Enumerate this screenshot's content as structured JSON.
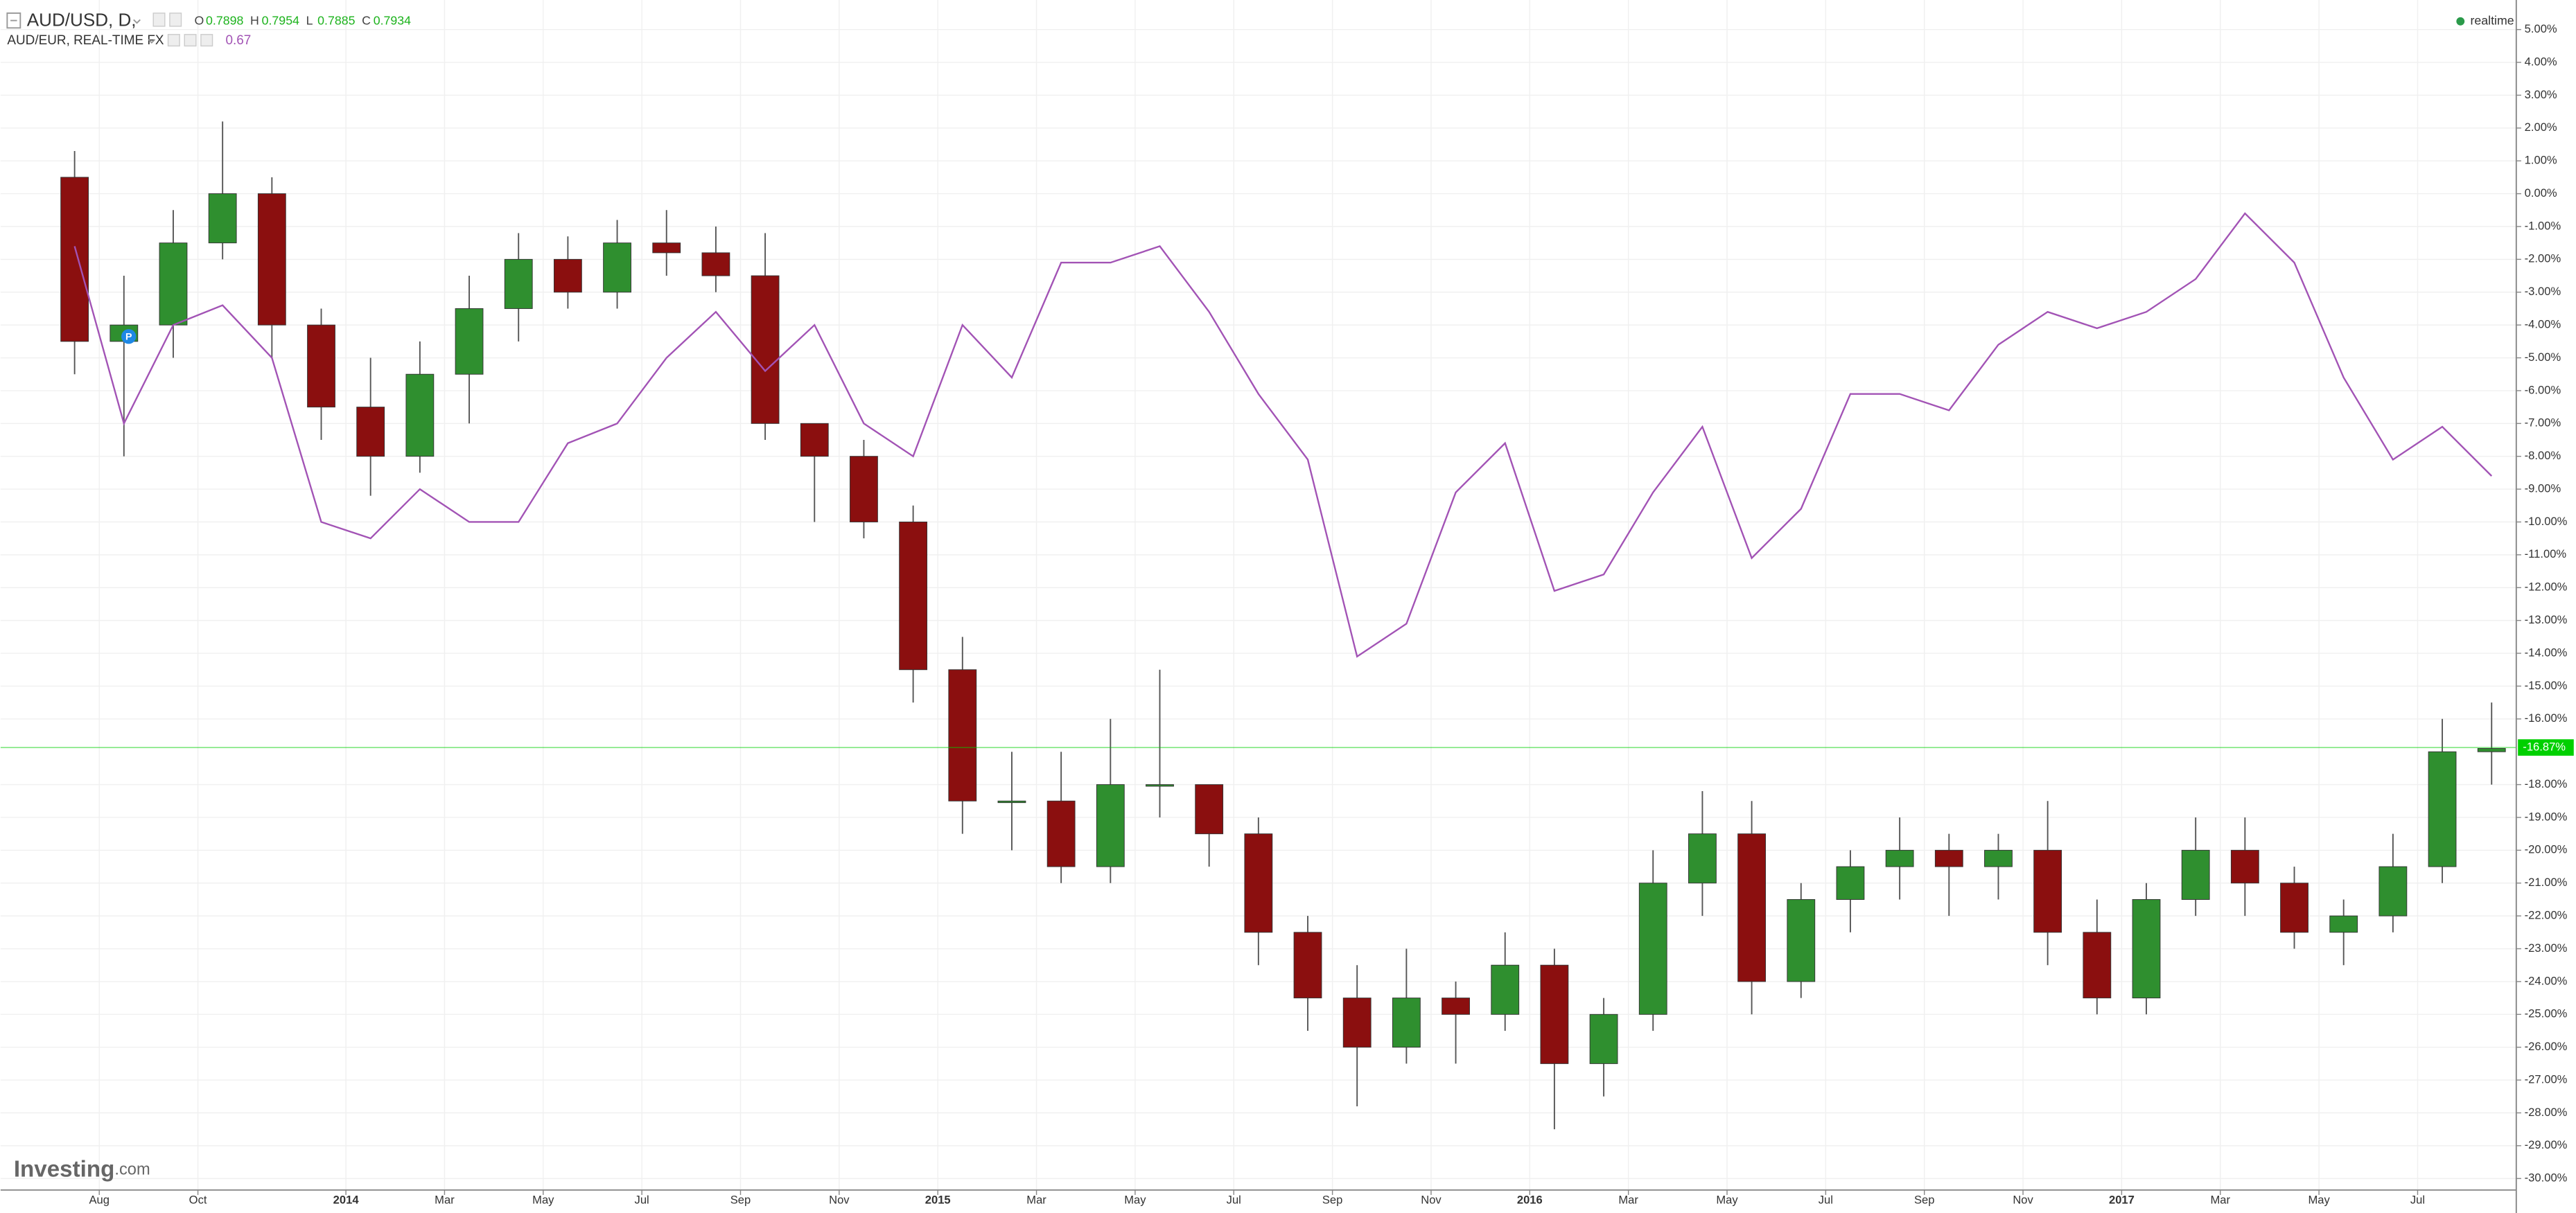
{
  "chart_data": {
    "type": "candlestick",
    "header": {
      "symbol": "AUD/USD, D,",
      "ohlc": [
        {
          "label": "O",
          "value": "0.7898"
        },
        {
          "label": "H",
          "value": "0.7954"
        },
        {
          "label": "L",
          "value": "0.7885"
        },
        {
          "label": "C",
          "value": "0.7934"
        }
      ],
      "compare": "AUD/EUR, REAL-TIME FX",
      "compare_value": "0.67",
      "status": "realtime",
      "watermark": "Investing",
      "watermark_suffix": ".com"
    },
    "x": [
      "2013-07",
      "2013-08",
      "2013-09",
      "2013-10",
      "2013-11",
      "2013-12",
      "2014-01",
      "2014-02",
      "2014-03",
      "2014-04",
      "2014-05",
      "2014-06",
      "2014-07",
      "2014-08",
      "2014-09",
      "2014-10",
      "2014-11",
      "2014-12",
      "2015-01",
      "2015-02",
      "2015-03",
      "2015-04",
      "2015-05",
      "2015-06",
      "2015-07",
      "2015-08",
      "2015-09",
      "2015-10",
      "2015-11",
      "2015-12",
      "2016-01",
      "2016-02",
      "2016-03",
      "2016-04",
      "2016-05",
      "2016-06",
      "2016-07",
      "2016-08",
      "2016-09",
      "2016-10",
      "2016-11",
      "2016-12",
      "2017-01",
      "2017-02",
      "2017-03",
      "2017-04",
      "2017-05",
      "2017-06",
      "2017-07",
      "2017-08"
    ],
    "series": [
      {
        "name": "AUD/USD",
        "color_up": "#2f8f2f",
        "color_down": "#8b0f0f",
        "open": [
          0.5,
          -4.5,
          -4,
          -1.5,
          0,
          -4,
          -6.5,
          -8,
          -5.5,
          -3.5,
          -2,
          -3,
          -1.5,
          -1.8,
          -2.5,
          -7,
          -8,
          -10,
          -14.5,
          -18.5,
          -18.5,
          -20.5,
          -18,
          -18,
          -19.5,
          -22.5,
          -24.5,
          -26,
          -24.5,
          -25,
          -23.5,
          -26.5,
          -25,
          -21,
          -19.5,
          -24,
          -21.5,
          -20.5,
          -20,
          -20.5,
          -20,
          -22.5,
          -24.5,
          -21.5,
          -20,
          -21,
          -22.5,
          -22,
          -20.5,
          -17
        ],
        "high": [
          1.3,
          -2.5,
          -0.5,
          2.2,
          0.5,
          -3.5,
          -5,
          -4.5,
          -2.5,
          -1.2,
          -1.3,
          -0.8,
          -0.5,
          -1,
          -1.2,
          -7,
          -7.5,
          -9.5,
          -13.5,
          -17,
          -17,
          -16,
          -14.5,
          -18,
          -19,
          -22,
          -23.5,
          -23,
          -24,
          -22.5,
          -23,
          -24.5,
          -20,
          -18.2,
          -18.5,
          -21,
          -20,
          -19,
          -19.5,
          -19.5,
          -18.5,
          -21.5,
          -21,
          -19,
          -19,
          -20.5,
          -21.5,
          -19.5,
          -16,
          -15.5
        ],
        "low": [
          -5.5,
          -8,
          -5,
          -2,
          -5,
          -7.5,
          -9.2,
          -8.5,
          -7,
          -4.5,
          -3.5,
          -3.5,
          -2.5,
          -3,
          -7.5,
          -10,
          -10.5,
          -15.5,
          -19.5,
          -20,
          -21,
          -21,
          -19,
          -20.5,
          -23.5,
          -25.5,
          -27.8,
          -26.5,
          -26.5,
          -25.5,
          -28.5,
          -27.5,
          -25.5,
          -22,
          -25,
          -24.5,
          -22.5,
          -21.5,
          -22,
          -21.5,
          -23.5,
          -25,
          -25,
          -22,
          -22,
          -23,
          -23.5,
          -22.5,
          -21,
          -18
        ],
        "close": [
          -4.5,
          -4,
          -1.5,
          0,
          -4,
          -6.5,
          -8,
          -5.5,
          -3.5,
          -2,
          -3,
          -1.5,
          -1.8,
          -2.5,
          -7,
          -8,
          -10,
          -14.5,
          -18.5,
          -18.5,
          -20.5,
          -18,
          -18,
          -19.5,
          -22.5,
          -24.5,
          -26,
          -24.5,
          -25,
          -23.5,
          -26.5,
          -25,
          -21,
          -19.5,
          -24,
          -21.5,
          -20.5,
          -20,
          -20.5,
          -20,
          -22.5,
          -24.5,
          -21.5,
          -20,
          -21,
          -22.5,
          -22,
          -20.5,
          -17,
          -16.9
        ]
      },
      {
        "name": "AUD/EUR",
        "color": "#a253b5",
        "values": [
          -1.6,
          -7,
          -4,
          -3.4,
          -5,
          -10,
          -10.5,
          -9,
          -10,
          -10,
          -7.6,
          -7,
          -5,
          -3.6,
          -5.4,
          -4,
          -7,
          -8,
          -4,
          -5.6,
          -2.1,
          -2.1,
          -1.6,
          -3.6,
          -6.1,
          -8.1,
          -14.1,
          -13.1,
          -9.1,
          -7.6,
          -12.1,
          -11.6,
          -9.1,
          -7.1,
          -11.1,
          -9.6,
          -6.1,
          -6.1,
          -6.6,
          -4.6,
          -3.6,
          -4.1,
          -3.6,
          -2.6,
          -0.6,
          -2.1,
          -5.6,
          -8.1,
          -7.1,
          -8.6
        ]
      }
    ],
    "last_price": {
      "value": -16.87,
      "label": "-16.87%"
    },
    "last_price_color": "#00d000",
    "xlim": [
      "2013-06",
      "2017-09"
    ],
    "xticks": [
      {
        "value": "2013-08",
        "label": "Aug"
      },
      {
        "value": "2013-10",
        "label": "Oct"
      },
      {
        "value": "2014-01",
        "label": "2014"
      },
      {
        "value": "2014-03",
        "label": "Mar"
      },
      {
        "value": "2014-05",
        "label": "May"
      },
      {
        "value": "2014-07",
        "label": "Jul"
      },
      {
        "value": "2014-09",
        "label": "Sep"
      },
      {
        "value": "2014-11",
        "label": "Nov"
      },
      {
        "value": "2015-01",
        "label": "2015"
      },
      {
        "value": "2015-03",
        "label": "Mar"
      },
      {
        "value": "2015-05",
        "label": "May"
      },
      {
        "value": "2015-07",
        "label": "Jul"
      },
      {
        "value": "2015-09",
        "label": "Sep"
      },
      {
        "value": "2015-11",
        "label": "Nov"
      },
      {
        "value": "2016-01",
        "label": "2016"
      },
      {
        "value": "2016-03",
        "label": "Mar"
      },
      {
        "value": "2016-05",
        "label": "May"
      },
      {
        "value": "2016-07",
        "label": "Jul"
      },
      {
        "value": "2016-09",
        "label": "Sep"
      },
      {
        "value": "2016-11",
        "label": "Nov"
      },
      {
        "value": "2017-01",
        "label": "2017"
      },
      {
        "value": "2017-03",
        "label": "Mar"
      },
      {
        "value": "2017-05",
        "label": "May"
      },
      {
        "value": "2017-07",
        "label": "Jul"
      }
    ],
    "ylim": [
      -30.35,
      5.9
    ],
    "yticks": [
      {
        "value": 5,
        "label": "5.00%"
      },
      {
        "value": 4,
        "label": "4.00%"
      },
      {
        "value": 3,
        "label": "3.00%"
      },
      {
        "value": 2,
        "label": "2.00%"
      },
      {
        "value": 1,
        "label": "1.00%"
      },
      {
        "value": 0,
        "label": "0.00%"
      },
      {
        "value": -1,
        "label": "-1.00%"
      },
      {
        "value": -2,
        "label": "-2.00%"
      },
      {
        "value": -3,
        "label": "-3.00%"
      },
      {
        "value": -4,
        "label": "-4.00%"
      },
      {
        "value": -5,
        "label": "-5.00%"
      },
      {
        "value": -6,
        "label": "-6.00%"
      },
      {
        "value": -7,
        "label": "-7.00%"
      },
      {
        "value": -8,
        "label": "-8.00%"
      },
      {
        "value": -9,
        "label": "-9.00%"
      },
      {
        "value": -10,
        "label": "-10.00%"
      },
      {
        "value": -11,
        "label": "-11.00%"
      },
      {
        "value": -12,
        "label": "-12.00%"
      },
      {
        "value": -13,
        "label": "-13.00%"
      },
      {
        "value": -14,
        "label": "-14.00%"
      },
      {
        "value": -15,
        "label": "-15.00%"
      },
      {
        "value": -16,
        "label": "-16.00%"
      },
      {
        "value": -18,
        "label": "-18.00%"
      },
      {
        "value": -19,
        "label": "-19.00%"
      },
      {
        "value": -20,
        "label": "-20.00%"
      },
      {
        "value": -21,
        "label": "-21.00%"
      },
      {
        "value": -22,
        "label": "-22.00%"
      },
      {
        "value": -23,
        "label": "-23.00%"
      },
      {
        "value": -24,
        "label": "-24.00%"
      },
      {
        "value": -25,
        "label": "-25.00%"
      },
      {
        "value": -26,
        "label": "-26.00%"
      },
      {
        "value": -27,
        "label": "-27.00%"
      },
      {
        "value": -28,
        "label": "-28.00%"
      },
      {
        "value": -29,
        "label": "-29.00%"
      },
      {
        "value": -30,
        "label": "-30.00%"
      }
    ],
    "grid": true
  }
}
